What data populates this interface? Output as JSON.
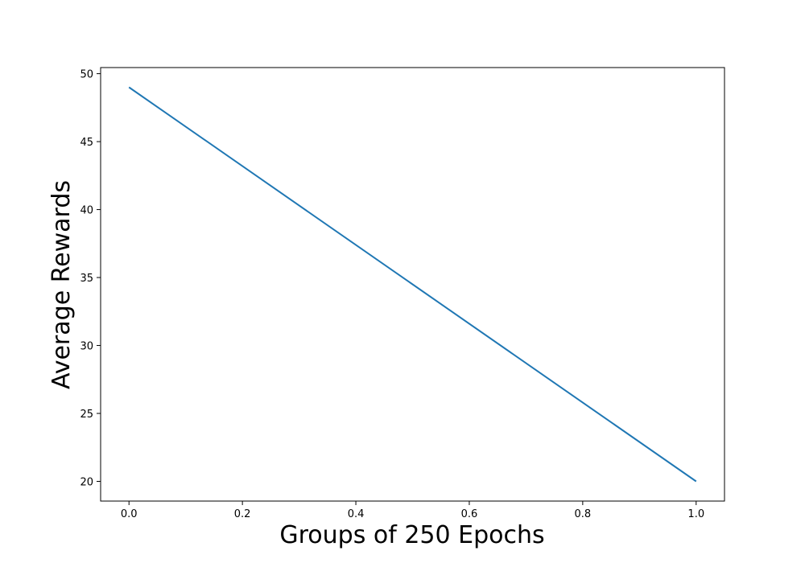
{
  "chart_data": {
    "type": "line",
    "title": "",
    "xlabel": "Groups of 250 Epochs",
    "ylabel": "Average Rewards",
    "xlim": [
      -0.05,
      1.05
    ],
    "ylim": [
      18.55,
      50.45
    ],
    "xticks": [
      0.0,
      0.2,
      0.4,
      0.6,
      0.8,
      1.0
    ],
    "xtick_labels": [
      "0.0",
      "0.2",
      "0.4",
      "0.6",
      "0.8",
      "1.0"
    ],
    "yticks": [
      20,
      25,
      30,
      35,
      40,
      45,
      50
    ],
    "ytick_labels": [
      "20",
      "25",
      "30",
      "35",
      "40",
      "45",
      "50"
    ],
    "grid": false,
    "series": [
      {
        "x": [
          0,
          1
        ],
        "values": [
          49.0,
          20.0
        ],
        "color": "#1f77b4"
      }
    ]
  }
}
